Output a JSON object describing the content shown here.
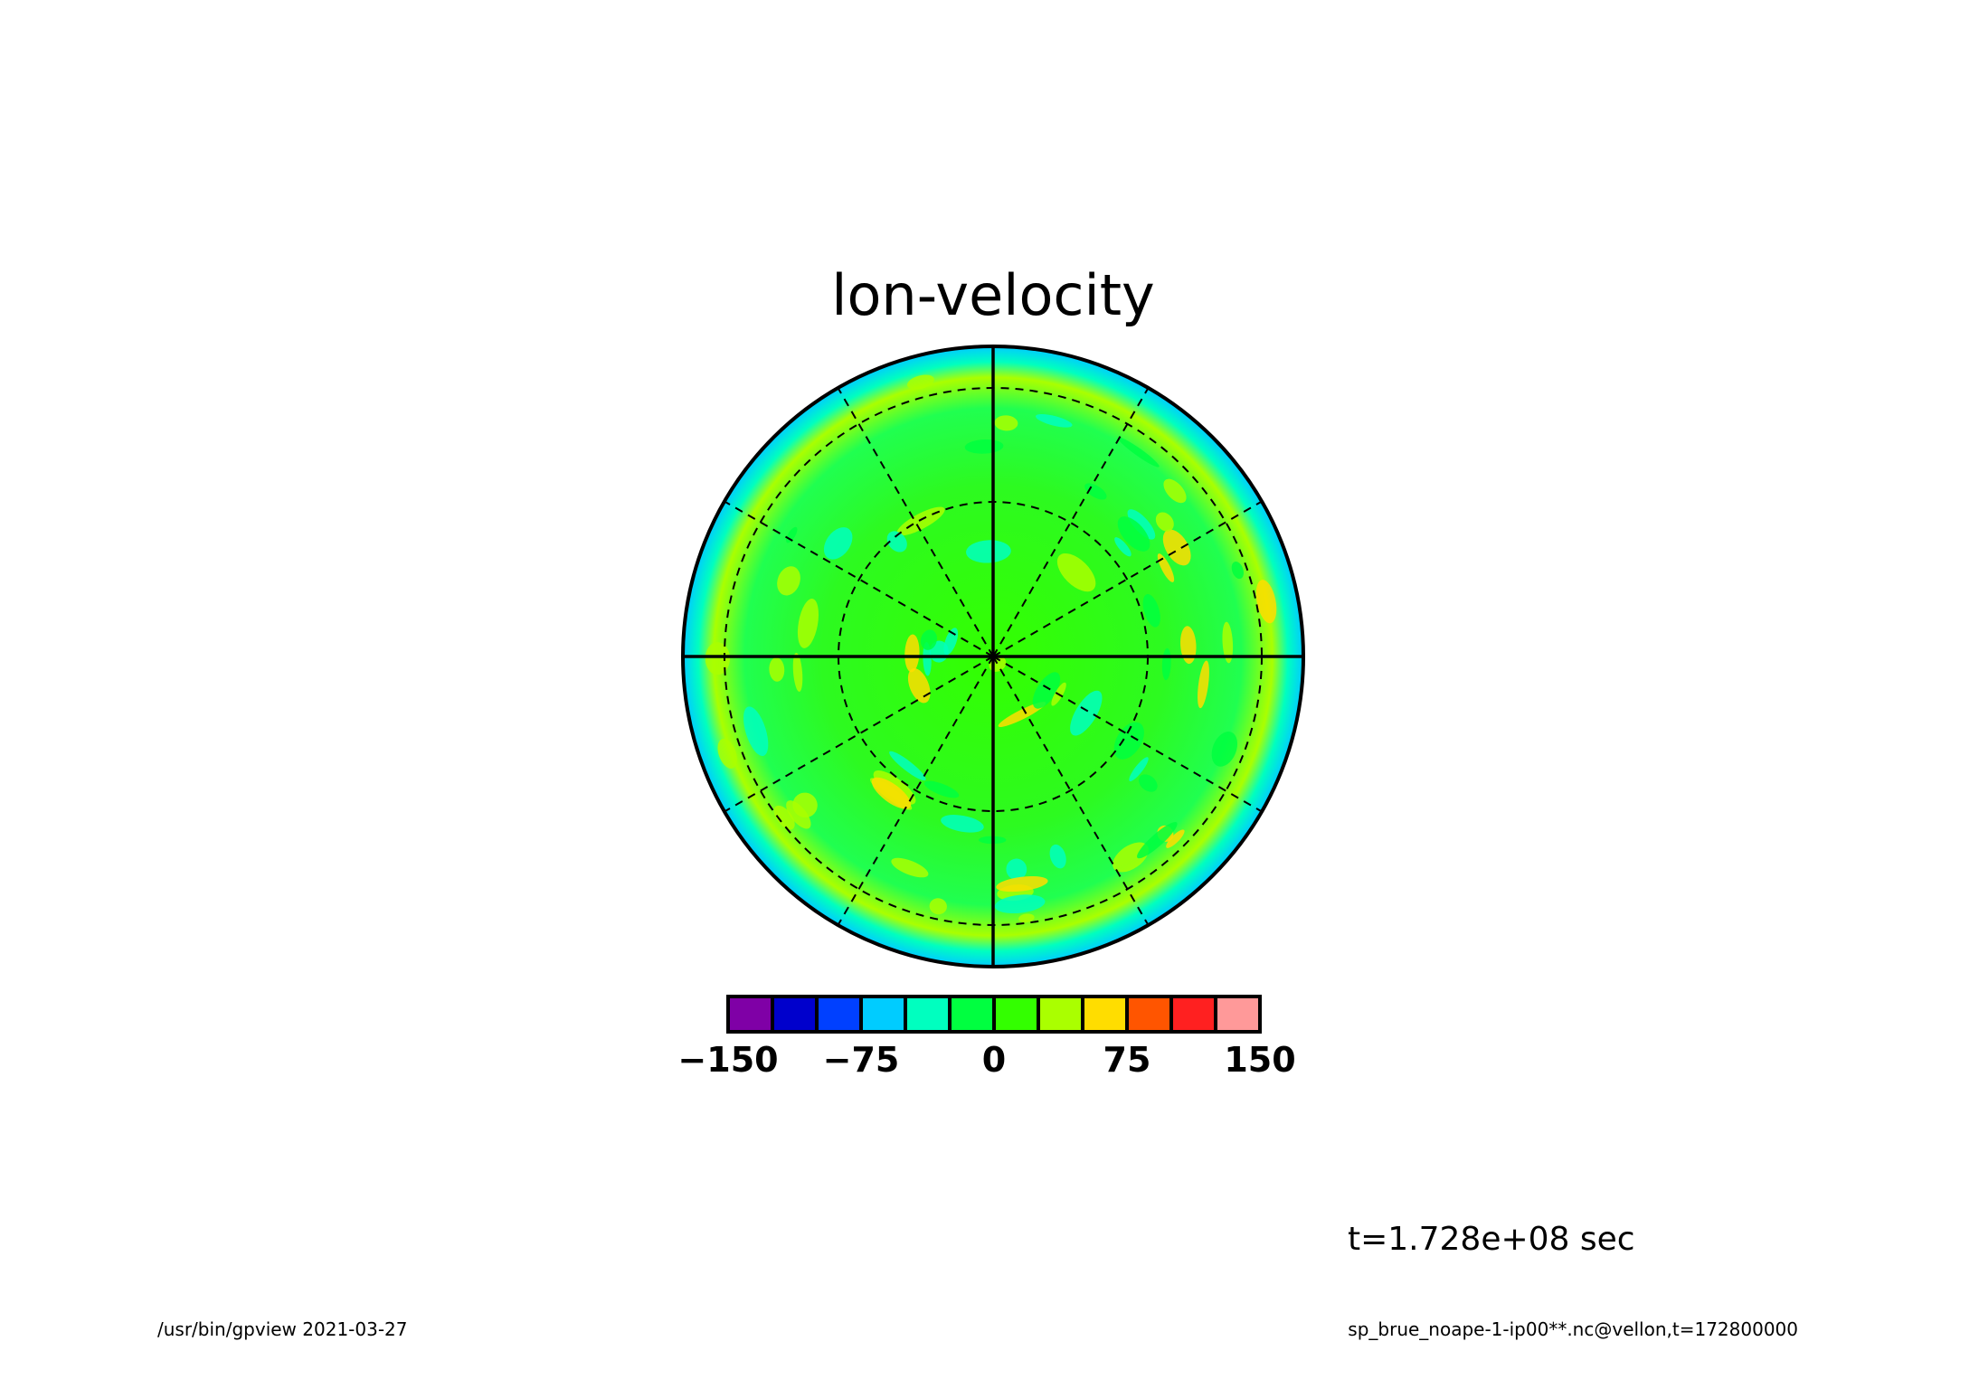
{
  "chart_data": {
    "type": "heatmap",
    "projection": "polar-stereographic",
    "title": "lon-velocity",
    "colorbar": {
      "levels": [
        -150,
        -125,
        -100,
        -75,
        -50,
        -25,
        0,
        25,
        50,
        75,
        100,
        125,
        150
      ],
      "colors": [
        "#7f00a6",
        "#0000cc",
        "#0040ff",
        "#00ccff",
        "#00ffbf",
        "#00ff40",
        "#33ff00",
        "#aaff00",
        "#ffdd00",
        "#ff5500",
        "#ff2020",
        "#ff9999"
      ],
      "tick_labels": [
        "−150",
        "−75",
        "0",
        "75",
        "150"
      ],
      "tick_values": [
        -150,
        -75,
        0,
        75,
        150
      ]
    },
    "dominant_range": [
      -50,
      50
    ],
    "grid": {
      "latitude_circles": 2,
      "meridian_spacing_deg": 30
    }
  },
  "annotations": {
    "time": "t=1.728e+08 sec",
    "footer_left": "/usr/bin/gpview  2021-03-27",
    "footer_right": "sp_brue_noape-1-ip00**.nc@vellon,t=172800000"
  }
}
